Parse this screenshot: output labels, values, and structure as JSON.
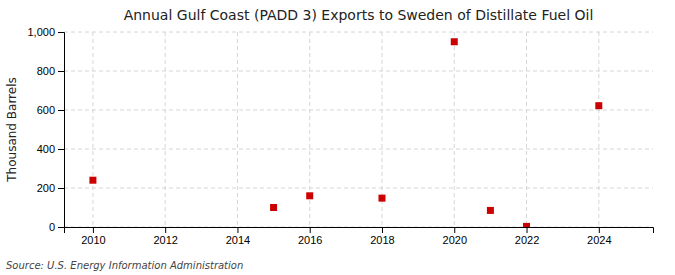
{
  "chart_data": {
    "type": "scatter",
    "title": "Annual Gulf Coast (PADD 3) Exports to Sweden of Distillate Fuel Oil",
    "ylabel": "Thousand Barrels",
    "source": "Source: U.S. Energy Information Administration",
    "x": [
      2010,
      2015,
      2016,
      2018,
      2020,
      2021,
      2022,
      2024
    ],
    "values": [
      240,
      100,
      160,
      148,
      950,
      85,
      3,
      622
    ],
    "color": "#cc0000",
    "marker": "square",
    "xlim": [
      2009.2,
      2025.5
    ],
    "ylim": [
      0,
      1000
    ],
    "xticks": [
      2010,
      2012,
      2014,
      2016,
      2018,
      2020,
      2022,
      2024
    ],
    "yticks": [
      0,
      200,
      400,
      600,
      800,
      {
        "value": 1000,
        "label": "1,000"
      }
    ],
    "grid": true
  }
}
